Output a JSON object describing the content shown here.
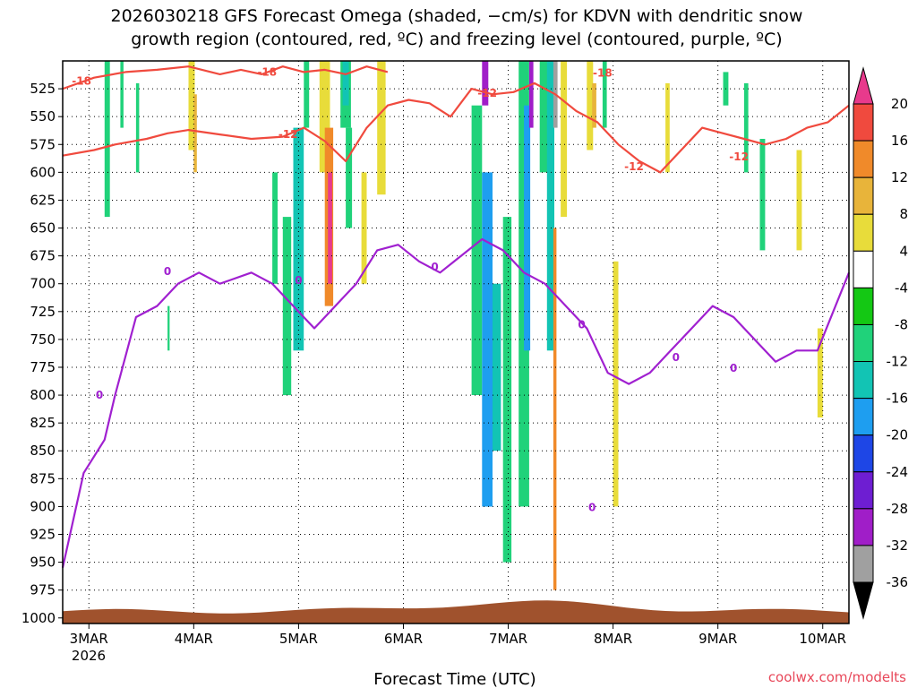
{
  "title": {
    "line1": "2026030218 GFS Forecast Omega (shaded, −cm/s) for KDVN with dendritic snow",
    "line2": "growth region (contoured, red, ºC) and freezing level (contoured, purple, ºC)"
  },
  "credit": "coolwx.com/modelts",
  "chart_data": {
    "type": "heatmap",
    "title": "2026030218 GFS Forecast Omega (shaded, −cm/s) for KDVN with dendritic snow growth region (contoured, red, ºC) and freezing level (contoured, purple, ºC)",
    "xlabel": "Forecast Time (UTC)",
    "ylabel": "",
    "x_axis": {
      "ticks": [
        "3MAR",
        "4MAR",
        "5MAR",
        "6MAR",
        "7MAR",
        "8MAR",
        "9MAR",
        "10MAR"
      ],
      "tick_positions_days": [
        0.25,
        1.25,
        2.25,
        3.25,
        4.25,
        5.25,
        6.25,
        7.25
      ],
      "sub_label": "2026",
      "range_days": [
        0,
        7.5
      ],
      "note": "days since 2026-03-02 18 UTC"
    },
    "y_axis": {
      "ticks": [
        525,
        550,
        575,
        600,
        625,
        650,
        675,
        700,
        725,
        750,
        775,
        800,
        825,
        850,
        875,
        900,
        925,
        950,
        975,
        1000
      ],
      "range_hpa": [
        500,
        1005
      ],
      "inverted": true
    },
    "grid": true,
    "colorbar": {
      "labels": [
        "20",
        "16",
        "12",
        "8",
        "4",
        "-4",
        "-8",
        "-12",
        "-16",
        "-20",
        "-24",
        "-28",
        "-32",
        "-36"
      ],
      "bins": [
        {
          "color": "#e83a8c"
        },
        {
          "color": "#f04a3e"
        },
        {
          "color": "#f08a2a"
        },
        {
          "color": "#e8b43a"
        },
        {
          "color": "#e8dc3a"
        },
        {
          "color": "#ffffff"
        },
        {
          "color": "#14c814"
        },
        {
          "color": "#20d27a"
        },
        {
          "color": "#12c4b4"
        },
        {
          "color": "#1e9ef0"
        },
        {
          "color": "#1e46e6"
        },
        {
          "color": "#6e1ed2"
        },
        {
          "color": "#a01ec8"
        },
        {
          "color": "#a0a0a0"
        },
        {
          "color": "#000000"
        }
      ]
    },
    "omega_cells": [
      {
        "x": 0.4,
        "w": 0.05,
        "p1": 500,
        "p2": 640,
        "value": -8
      },
      {
        "x": 0.55,
        "w": 0.03,
        "p1": 500,
        "p2": 560,
        "value": -8
      },
      {
        "x": 0.7,
        "w": 0.03,
        "p1": 520,
        "p2": 600,
        "value": -8
      },
      {
        "x": 1.2,
        "w": 0.06,
        "p1": 500,
        "p2": 580,
        "value": 4
      },
      {
        "x": 1.25,
        "w": 0.03,
        "p1": 530,
        "p2": 600,
        "value": 8
      },
      {
        "x": 1.0,
        "w": 0.02,
        "p1": 720,
        "p2": 760,
        "value": -8
      },
      {
        "x": 2.0,
        "w": 0.05,
        "p1": 600,
        "p2": 700,
        "value": -8
      },
      {
        "x": 2.1,
        "w": 0.08,
        "p1": 640,
        "p2": 800,
        "value": -8
      },
      {
        "x": 2.2,
        "w": 0.1,
        "p1": 560,
        "p2": 760,
        "value": -12
      },
      {
        "x": 2.3,
        "w": 0.05,
        "p1": 500,
        "p2": 560,
        "value": -8
      },
      {
        "x": 2.45,
        "w": 0.1,
        "p1": 500,
        "p2": 600,
        "value": 4
      },
      {
        "x": 2.5,
        "w": 0.08,
        "p1": 560,
        "p2": 720,
        "value": 12
      },
      {
        "x": 2.53,
        "w": 0.04,
        "p1": 600,
        "p2": 700,
        "value": 20
      },
      {
        "x": 2.65,
        "w": 0.1,
        "p1": 500,
        "p2": 560,
        "value": -8
      },
      {
        "x": 2.67,
        "w": 0.06,
        "p1": 500,
        "p2": 540,
        "value": -12
      },
      {
        "x": 2.7,
        "w": 0.06,
        "p1": 560,
        "p2": 650,
        "value": -8
      },
      {
        "x": 2.85,
        "w": 0.05,
        "p1": 600,
        "p2": 700,
        "value": 4
      },
      {
        "x": 3.0,
        "w": 0.08,
        "p1": 500,
        "p2": 620,
        "value": 4
      },
      {
        "x": 4.0,
        "w": 0.06,
        "p1": 500,
        "p2": 540,
        "value": -28
      },
      {
        "x": 3.9,
        "w": 0.1,
        "p1": 540,
        "p2": 800,
        "value": -8
      },
      {
        "x": 4.0,
        "w": 0.1,
        "p1": 600,
        "p2": 900,
        "value": -16
      },
      {
        "x": 4.1,
        "w": 0.08,
        "p1": 700,
        "p2": 850,
        "value": -12
      },
      {
        "x": 4.2,
        "w": 0.08,
        "p1": 640,
        "p2": 950,
        "value": -8
      },
      {
        "x": 4.35,
        "w": 0.1,
        "p1": 500,
        "p2": 900,
        "value": -8
      },
      {
        "x": 4.4,
        "w": 0.06,
        "p1": 540,
        "p2": 760,
        "value": -16
      },
      {
        "x": 4.45,
        "w": 0.04,
        "p1": 500,
        "p2": 560,
        "value": -28
      },
      {
        "x": 4.55,
        "w": 0.1,
        "p1": 500,
        "p2": 600,
        "value": -8
      },
      {
        "x": 4.62,
        "w": 0.07,
        "p1": 500,
        "p2": 760,
        "value": -12
      },
      {
        "x": 4.68,
        "w": 0.04,
        "p1": 500,
        "p2": 560,
        "value": -32
      },
      {
        "x": 4.68,
        "w": 0.03,
        "p1": 650,
        "p2": 975,
        "value": 12
      },
      {
        "x": 4.75,
        "w": 0.06,
        "p1": 500,
        "p2": 640,
        "value": 4
      },
      {
        "x": 5.0,
        "w": 0.06,
        "p1": 500,
        "p2": 580,
        "value": 4
      },
      {
        "x": 5.05,
        "w": 0.04,
        "p1": 520,
        "p2": 560,
        "value": 8
      },
      {
        "x": 5.15,
        "w": 0.04,
        "p1": 500,
        "p2": 560,
        "value": -8
      },
      {
        "x": 5.25,
        "w": 0.05,
        "p1": 680,
        "p2": 900,
        "value": 4
      },
      {
        "x": 5.75,
        "w": 0.04,
        "p1": 520,
        "p2": 600,
        "value": 4
      },
      {
        "x": 6.3,
        "w": 0.05,
        "p1": 510,
        "p2": 540,
        "value": -8
      },
      {
        "x": 6.5,
        "w": 0.04,
        "p1": 520,
        "p2": 600,
        "value": -8
      },
      {
        "x": 6.65,
        "w": 0.05,
        "p1": 570,
        "p2": 670,
        "value": -8
      },
      {
        "x": 7.0,
        "w": 0.05,
        "p1": 580,
        "p2": 670,
        "value": 4
      },
      {
        "x": 7.2,
        "w": 0.05,
        "p1": 740,
        "p2": 820,
        "value": 4
      }
    ],
    "series": [
      {
        "name": "-18",
        "color": "#f04a3e",
        "x": [
          0,
          0.3,
          0.6,
          0.9,
          1.2,
          1.5,
          1.7,
          1.9,
          2.1,
          2.3,
          2.5,
          2.7,
          2.9,
          3.1
        ],
        "y": [
          525,
          515,
          510,
          508,
          505,
          512,
          508,
          512,
          505,
          510,
          508,
          512,
          505,
          510
        ]
      },
      {
        "name": "-12",
        "color": "#f04a3e",
        "x": [
          0,
          0.3,
          0.5,
          0.8,
          1.0,
          1.2,
          1.5,
          1.8,
          2.1,
          2.3,
          2.5,
          2.7,
          2.9,
          3.1,
          3.3,
          3.5,
          3.7,
          3.9,
          4.1,
          4.3,
          4.5,
          4.7,
          4.9,
          5.1,
          5.3,
          5.5,
          5.7,
          5.9,
          6.1,
          6.3,
          6.5,
          6.7,
          6.9,
          7.1,
          7.3,
          7.5
        ],
        "y": [
          585,
          580,
          575,
          570,
          565,
          562,
          566,
          570,
          568,
          560,
          572,
          590,
          560,
          540,
          535,
          538,
          550,
          525,
          530,
          528,
          520,
          530,
          545,
          555,
          575,
          590,
          600,
          580,
          560,
          565,
          570,
          575,
          570,
          560,
          555,
          540
        ]
      },
      {
        "name": "0",
        "color": "#a020d0",
        "x": [
          0,
          0.2,
          0.4,
          0.5,
          0.7,
          0.9,
          1.1,
          1.3,
          1.5,
          1.8,
          2.0,
          2.2,
          2.4,
          2.6,
          2.8,
          3.0,
          3.2,
          3.4,
          3.6,
          3.8,
          4.0,
          4.2,
          4.4,
          4.6,
          4.8,
          5.0,
          5.2,
          5.4,
          5.6,
          5.8,
          6.0,
          6.2,
          6.4,
          6.6,
          6.8,
          7.0,
          7.2,
          7.5
        ],
        "y": [
          955,
          870,
          840,
          800,
          730,
          720,
          700,
          690,
          700,
          690,
          700,
          720,
          740,
          720,
          700,
          670,
          665,
          680,
          690,
          675,
          660,
          670,
          690,
          700,
          720,
          740,
          780,
          790,
          780,
          760,
          740,
          720,
          730,
          750,
          770,
          760,
          760,
          690
        ]
      }
    ],
    "contour_labels": [
      {
        "text": "-18",
        "x": 0.18,
        "y": 518
      },
      {
        "text": "-18",
        "x": 1.95,
        "y": 510
      },
      {
        "text": "-18",
        "x": 5.15,
        "y": 511
      },
      {
        "text": "-12",
        "x": 2.15,
        "y": 566
      },
      {
        "text": "-12",
        "x": 4.05,
        "y": 529
      },
      {
        "text": "-12",
        "x": 5.45,
        "y": 595
      },
      {
        "text": "-12",
        "x": 6.45,
        "y": 586
      },
      {
        "text": "0",
        "x": 1.0,
        "y": 689
      },
      {
        "text": "0",
        "x": 2.25,
        "y": 697
      },
      {
        "text": "0",
        "x": 3.55,
        "y": 685
      },
      {
        "text": "0",
        "x": 0.35,
        "y": 800
      },
      {
        "text": "0",
        "x": 4.95,
        "y": 737
      },
      {
        "text": "0",
        "x": 5.85,
        "y": 766
      },
      {
        "text": "0",
        "x": 6.4,
        "y": 776
      },
      {
        "text": "0",
        "x": 5.05,
        "y": 901
      }
    ]
  }
}
